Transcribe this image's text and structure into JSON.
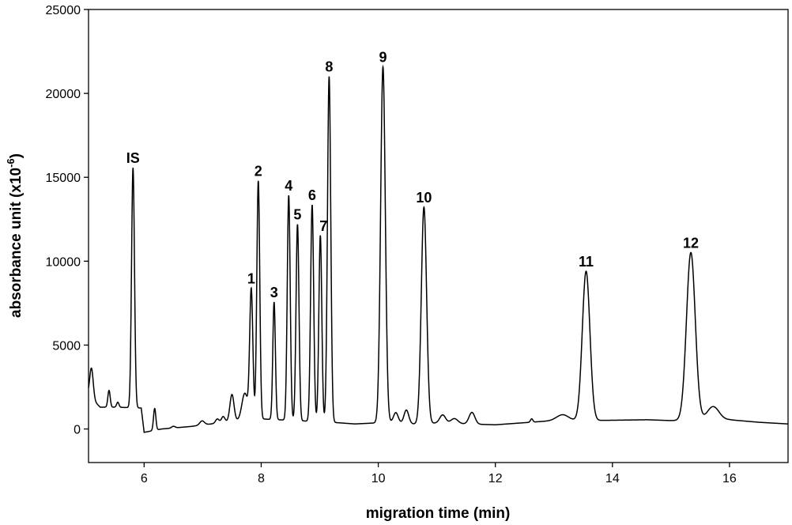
{
  "chart_data": {
    "type": "line",
    "xlabel": "migration time (min)",
    "ylabel": "absorbance unit (x10",
    "ylabel_sup": "-6",
    "ylabel_close": ")",
    "xlim": [
      5.05,
      17.0
    ],
    "ylim": [
      -2000,
      25000
    ],
    "x_ticks": [
      6,
      8,
      10,
      12,
      14,
      16
    ],
    "y_ticks": [
      0,
      5000,
      10000,
      15000,
      20000,
      25000
    ],
    "x_tick_labels": [
      "6",
      "8",
      "10",
      "12",
      "14",
      "16"
    ],
    "y_tick_labels": [
      "0",
      "5000",
      "10000",
      "15000",
      "20000",
      "25000"
    ],
    "grid": false,
    "baseline": [
      {
        "x": 5.05,
        "y": 2000
      },
      {
        "x": 5.25,
        "y": 1300
      },
      {
        "x": 5.5,
        "y": 1300
      },
      {
        "x": 5.95,
        "y": 1250
      },
      {
        "x": 6.0,
        "y": -200
      },
      {
        "x": 6.3,
        "y": 0
      },
      {
        "x": 6.8,
        "y": 150
      },
      {
        "x": 7.6,
        "y": 500
      },
      {
        "x": 8.0,
        "y": 600
      },
      {
        "x": 9.2,
        "y": 400
      },
      {
        "x": 9.6,
        "y": 300
      },
      {
        "x": 10.2,
        "y": 400
      },
      {
        "x": 10.6,
        "y": 300
      },
      {
        "x": 11.0,
        "y": 350
      },
      {
        "x": 12.0,
        "y": 250
      },
      {
        "x": 13.0,
        "y": 500
      },
      {
        "x": 13.6,
        "y": 500
      },
      {
        "x": 14.6,
        "y": 550
      },
      {
        "x": 15.0,
        "y": 500
      },
      {
        "x": 16.0,
        "y": 550
      },
      {
        "x": 16.5,
        "y": 400
      },
      {
        "x": 17.0,
        "y": 300
      }
    ],
    "peaks": [
      {
        "label": "",
        "x": 5.1,
        "height": 1800,
        "width": 0.03
      },
      {
        "label": "",
        "x": 5.4,
        "height": 1000,
        "width": 0.02
      },
      {
        "label": "",
        "x": 5.55,
        "height": 300,
        "width": 0.02
      },
      {
        "label": "IS",
        "x": 5.81,
        "height": 14300,
        "width": 0.025
      },
      {
        "label": "",
        "x": 6.18,
        "height": 1300,
        "width": 0.02
      },
      {
        "label": "",
        "x": 6.5,
        "height": 100,
        "width": 0.03
      },
      {
        "label": "",
        "x": 6.99,
        "height": 250,
        "width": 0.04
      },
      {
        "label": "",
        "x": 7.25,
        "height": 250,
        "width": 0.03
      },
      {
        "label": "",
        "x": 7.35,
        "height": 350,
        "width": 0.03
      },
      {
        "label": "",
        "x": 7.5,
        "height": 1600,
        "width": 0.035
      },
      {
        "label": "",
        "x": 7.72,
        "height": 1600,
        "width": 0.05
      },
      {
        "label": "1",
        "x": 7.83,
        "height": 7700,
        "width": 0.027
      },
      {
        "label": "2",
        "x": 7.95,
        "height": 14200,
        "width": 0.025
      },
      {
        "label": "3",
        "x": 8.22,
        "height": 7000,
        "width": 0.022
      },
      {
        "label": "4",
        "x": 8.47,
        "height": 13400,
        "width": 0.025
      },
      {
        "label": "5",
        "x": 8.62,
        "height": 11700,
        "width": 0.025
      },
      {
        "label": "6",
        "x": 8.87,
        "height": 12900,
        "width": 0.026
      },
      {
        "label": "7",
        "x": 9.01,
        "height": 11100,
        "width": 0.025
      },
      {
        "label": "8",
        "x": 9.16,
        "height": 20600,
        "width": 0.028
      },
      {
        "label": "9",
        "x": 10.08,
        "height": 21200,
        "width": 0.04
      },
      {
        "label": "",
        "x": 10.3,
        "height": 600,
        "width": 0.04
      },
      {
        "label": "",
        "x": 10.48,
        "height": 800,
        "width": 0.04
      },
      {
        "label": "10",
        "x": 10.78,
        "height": 12900,
        "width": 0.045
      },
      {
        "label": "",
        "x": 11.1,
        "height": 500,
        "width": 0.05
      },
      {
        "label": "",
        "x": 11.3,
        "height": 300,
        "width": 0.06
      },
      {
        "label": "",
        "x": 11.6,
        "height": 700,
        "width": 0.05
      },
      {
        "label": "",
        "x": 12.62,
        "height": 200,
        "width": 0.02
      },
      {
        "label": "",
        "x": 13.15,
        "height": 350,
        "width": 0.1
      },
      {
        "label": "11",
        "x": 13.55,
        "height": 8900,
        "width": 0.065
      },
      {
        "label": "12",
        "x": 15.34,
        "height": 10000,
        "width": 0.075
      },
      {
        "label": "",
        "x": 15.72,
        "height": 800,
        "width": 0.1
      }
    ]
  }
}
